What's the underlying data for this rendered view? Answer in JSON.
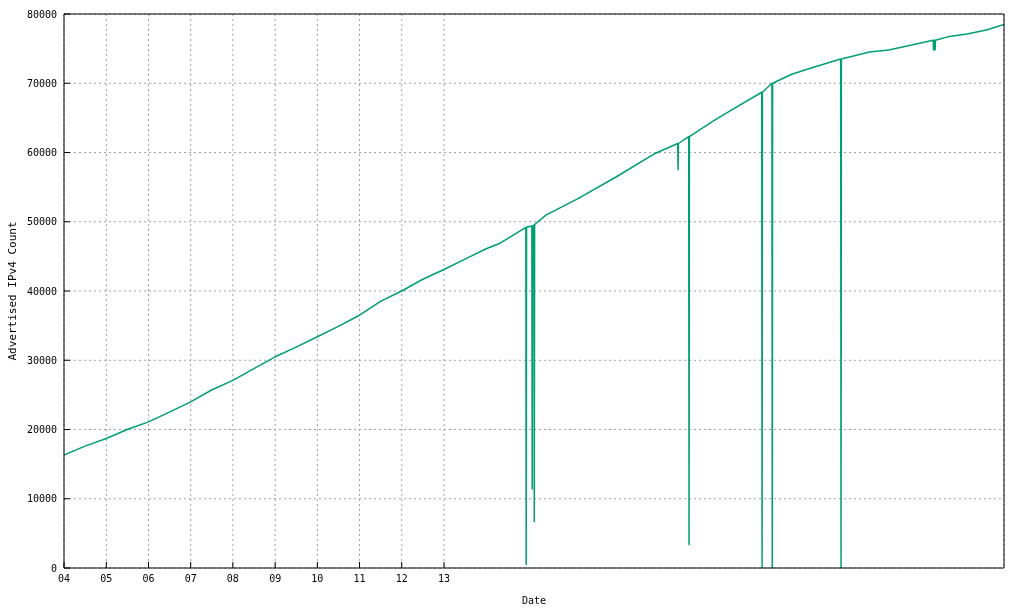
{
  "chart_data": {
    "type": "line",
    "xlabel": "Date",
    "ylabel": "Advertised IPv4 Count",
    "color": "#009e73",
    "x": [
      "2004-01-01",
      "2004-07-01",
      "2005-01-01",
      "2005-07-01",
      "2006-01-01",
      "2006-07-01",
      "2007-01-01",
      "2007-07-01",
      "2008-01-01",
      "2008-07-01",
      "2009-01-01",
      "2009-07-01",
      "2010-01-01",
      "2010-07-01",
      "2011-01-01",
      "2011-07-01",
      "2012-01-01",
      "2012-07-01",
      "2013-01-01",
      "2013-07-01",
      "2014-01-01",
      "2014-05-01",
      "2014-12-10",
      "2014-12-13",
      "2014-12-16",
      "2015-01-31",
      "2015-02-03",
      "2015-02-06",
      "2015-02-18",
      "2015-02-21",
      "2015-02-24",
      "2015-06-05",
      "2016-03-01",
      "2017-02-01",
      "2018-01-05",
      "2018-07-16",
      "2018-07-19",
      "2018-07-22",
      "2018-10-19",
      "2018-10-22",
      "2018-10-25",
      "2019-05-25",
      "2019-11-10",
      "2020-07-12",
      "2020-07-15",
      "2020-07-18",
      "2020-10-08",
      "2020-10-11",
      "2020-10-14",
      "2021-03-28",
      "2021-09-12",
      "2022-05-26",
      "2022-05-29",
      "2022-06-01",
      "2023-01-30",
      "2023-07-16",
      "2024-01-01",
      "2024-08-03",
      "2024-08-06",
      "2024-08-09",
      "2024-08-17",
      "2024-08-20",
      "2024-08-23",
      "2024-12-06",
      "2025-05-23",
      "2025-11-07",
      "2026-04-08"
    ],
    "values": [
      16300,
      17600,
      18700,
      20000,
      21100,
      22500,
      24000,
      25700,
      27100,
      28800,
      30500,
      31900,
      33400,
      34900,
      36500,
      38500,
      40000,
      41700,
      43100,
      44600,
      46100,
      46900,
      49200,
      500,
      49200,
      49400,
      11400,
      49400,
      49500,
      6700,
      49600,
      51000,
      53300,
      56500,
      59900,
      61300,
      57500,
      61300,
      62300,
      3400,
      62300,
      64600,
      66300,
      68700,
      0,
      68700,
      70000,
      0,
      70000,
      71300,
      72200,
      73500,
      0,
      73500,
      74500,
      74800,
      75400,
      76200,
      74800,
      76200,
      76200,
      74800,
      76200,
      76700,
      77100,
      77700,
      78500
    ],
    "xlim": [
      "2004-01-01",
      "2026-04-08"
    ],
    "xticks": [
      {
        "value": "2004-01-01",
        "label": "04"
      },
      {
        "value": "2005-01-01",
        "label": "05"
      },
      {
        "value": "2006-01-01",
        "label": "06"
      },
      {
        "value": "2007-01-01",
        "label": "07"
      },
      {
        "value": "2008-01-01",
        "label": "08"
      },
      {
        "value": "2009-01-01",
        "label": "09"
      },
      {
        "value": "2010-01-01",
        "label": "10"
      },
      {
        "value": "2011-01-01",
        "label": "11"
      },
      {
        "value": "2012-01-01",
        "label": "12"
      },
      {
        "value": "2013-01-01",
        "label": "13"
      }
    ],
    "ylim": [
      0,
      80000
    ],
    "yticks": [
      0,
      10000,
      20000,
      30000,
      40000,
      50000,
      60000,
      70000,
      80000
    ],
    "grid": true
  }
}
